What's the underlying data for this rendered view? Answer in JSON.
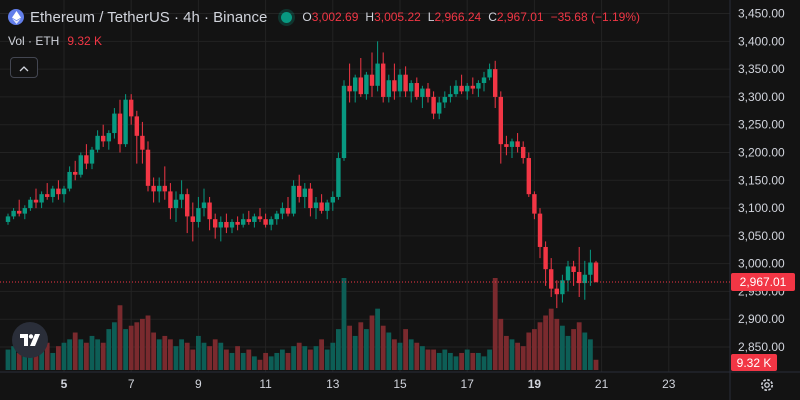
{
  "header": {
    "symbol": "Ethereum / TetherUS · 4h · Binance",
    "ohlc": [
      {
        "k": "O",
        "v": "3,002.69"
      },
      {
        "k": "H",
        "v": "3,005.22"
      },
      {
        "k": "L",
        "v": "2,966.24"
      },
      {
        "k": "C",
        "v": "2,967.01"
      }
    ],
    "change": "−35.68 (−1.19%)"
  },
  "volume": {
    "label": "Vol · ETH",
    "value": "9.32 K"
  },
  "price_labels": {
    "last": "2,967.01",
    "volume": "9.32 K"
  },
  "colors": {
    "up": "#089981",
    "down": "#f23645",
    "up_vol": "#0d5e56",
    "down_vol": "#7a2a2e",
    "background": "#131313",
    "grid": "#232323",
    "text": "#d1d4dc"
  },
  "icons": {
    "logo": "ethereum-logo-icon",
    "live": "live-dot-icon",
    "collapse": "chevron-up-icon",
    "brand": "tradingview-logo-icon",
    "settings": "gear-icon"
  },
  "chart_data": {
    "type": "candlestick",
    "y_ticks": [
      "3,450.00",
      "3,400.00",
      "3,350.00",
      "3,300.00",
      "3,250.00",
      "3,200.00",
      "3,150.00",
      "3,100.00",
      "3,050.00",
      "3,000.00",
      "2,950.00",
      "2,900.00",
      "2,850.00"
    ],
    "y_tick_values": [
      3450,
      3400,
      3350,
      3300,
      3250,
      3200,
      3150,
      3100,
      3050,
      3000,
      2950,
      2900,
      2850
    ],
    "x_ticks": [
      {
        "label": "5",
        "bold": true,
        "index": 10
      },
      {
        "label": "7",
        "bold": false,
        "index": 22
      },
      {
        "label": "9",
        "bold": false,
        "index": 34
      },
      {
        "label": "11",
        "bold": false,
        "index": 46
      },
      {
        "label": "13",
        "bold": false,
        "index": 58
      },
      {
        "label": "15",
        "bold": false,
        "index": 70
      },
      {
        "label": "17",
        "bold": false,
        "index": 82
      },
      {
        "label": "19",
        "bold": true,
        "index": 94
      },
      {
        "label": "21",
        "bold": false,
        "index": 106
      },
      {
        "label": "23",
        "bold": false,
        "index": 118
      }
    ],
    "ylim": [
      2850,
      3460
    ],
    "last_price": 2967.01,
    "volume_max": 27,
    "candles": [
      [
        3075,
        3090,
        3070,
        3085,
        6
      ],
      [
        3085,
        3100,
        3080,
        3095,
        7
      ],
      [
        3095,
        3115,
        3085,
        3090,
        5
      ],
      [
        3090,
        3105,
        3080,
        3100,
        6
      ],
      [
        3100,
        3120,
        3095,
        3115,
        5
      ],
      [
        3115,
        3135,
        3100,
        3110,
        7
      ],
      [
        3110,
        3130,
        3100,
        3125,
        6
      ],
      [
        3125,
        3145,
        3115,
        3120,
        8
      ],
      [
        3120,
        3140,
        3110,
        3135,
        5
      ],
      [
        3135,
        3150,
        3115,
        3125,
        7
      ],
      [
        3125,
        3140,
        3110,
        3135,
        8
      ],
      [
        3135,
        3175,
        3130,
        3165,
        9
      ],
      [
        3165,
        3185,
        3150,
        3160,
        11
      ],
      [
        3160,
        3200,
        3155,
        3195,
        9
      ],
      [
        3195,
        3215,
        3170,
        3180,
        8
      ],
      [
        3180,
        3210,
        3170,
        3205,
        10
      ],
      [
        3205,
        3240,
        3200,
        3230,
        9
      ],
      [
        3230,
        3250,
        3210,
        3220,
        8
      ],
      [
        3220,
        3240,
        3205,
        3235,
        12
      ],
      [
        3235,
        3280,
        3225,
        3270,
        14
      ],
      [
        3270,
        3295,
        3200,
        3215,
        19
      ],
      [
        3215,
        3305,
        3210,
        3295,
        12
      ],
      [
        3295,
        3305,
        3250,
        3265,
        13
      ],
      [
        3265,
        3275,
        3180,
        3230,
        14
      ],
      [
        3230,
        3255,
        3180,
        3205,
        15
      ],
      [
        3205,
        3220,
        3130,
        3140,
        16
      ],
      [
        3140,
        3155,
        3110,
        3130,
        11
      ],
      [
        3130,
        3155,
        3110,
        3140,
        9
      ],
      [
        3140,
        3175,
        3115,
        3130,
        10
      ],
      [
        3130,
        3145,
        3080,
        3100,
        9
      ],
      [
        3100,
        3130,
        3075,
        3115,
        7
      ],
      [
        3115,
        3150,
        3100,
        3125,
        9
      ],
      [
        3125,
        3135,
        3055,
        3085,
        8
      ],
      [
        3085,
        3110,
        3040,
        3075,
        6
      ],
      [
        3075,
        3120,
        3065,
        3100,
        10
      ],
      [
        3100,
        3135,
        3085,
        3110,
        8
      ],
      [
        3110,
        3120,
        3060,
        3080,
        7
      ],
      [
        3080,
        3090,
        3045,
        3065,
        9
      ],
      [
        3065,
        3085,
        3040,
        3075,
        8
      ],
      [
        3075,
        3090,
        3055,
        3065,
        6
      ],
      [
        3065,
        3080,
        3055,
        3075,
        5
      ],
      [
        3075,
        3085,
        3060,
        3070,
        7
      ],
      [
        3070,
        3090,
        3065,
        3080,
        5
      ],
      [
        3080,
        3095,
        3070,
        3075,
        6
      ],
      [
        3075,
        3090,
        3065,
        3085,
        4
      ],
      [
        3085,
        3100,
        3075,
        3080,
        3
      ],
      [
        3080,
        3090,
        3065,
        3070,
        5
      ],
      [
        3070,
        3085,
        3060,
        3080,
        4
      ],
      [
        3080,
        3095,
        3070,
        3090,
        5
      ],
      [
        3090,
        3110,
        3080,
        3100,
        6
      ],
      [
        3100,
        3120,
        3085,
        3090,
        5
      ],
      [
        3090,
        3150,
        3085,
        3140,
        7
      ],
      [
        3140,
        3160,
        3110,
        3120,
        8
      ],
      [
        3120,
        3145,
        3100,
        3135,
        7
      ],
      [
        3135,
        3145,
        3085,
        3100,
        6
      ],
      [
        3100,
        3120,
        3080,
        3110,
        7
      ],
      [
        3110,
        3125,
        3090,
        3095,
        9
      ],
      [
        3095,
        3115,
        3080,
        3110,
        6
      ],
      [
        3110,
        3130,
        3095,
        3120,
        8
      ],
      [
        3120,
        3200,
        3115,
        3190,
        12
      ],
      [
        3190,
        3330,
        3185,
        3320,
        27
      ],
      [
        3320,
        3360,
        3290,
        3310,
        13
      ],
      [
        3310,
        3340,
        3290,
        3335,
        10
      ],
      [
        3335,
        3370,
        3300,
        3305,
        14
      ],
      [
        3305,
        3345,
        3295,
        3340,
        12
      ],
      [
        3340,
        3380,
        3300,
        3320,
        16
      ],
      [
        3320,
        3400,
        3310,
        3360,
        18
      ],
      [
        3360,
        3380,
        3290,
        3300,
        13
      ],
      [
        3300,
        3340,
        3290,
        3330,
        11
      ],
      [
        3330,
        3360,
        3295,
        3310,
        9
      ],
      [
        3310,
        3350,
        3300,
        3340,
        8
      ],
      [
        3340,
        3355,
        3300,
        3310,
        12
      ],
      [
        3310,
        3330,
        3290,
        3325,
        9
      ],
      [
        3325,
        3335,
        3295,
        3300,
        8
      ],
      [
        3300,
        3320,
        3280,
        3315,
        7
      ],
      [
        3315,
        3325,
        3290,
        3300,
        6
      ],
      [
        3300,
        3310,
        3260,
        3270,
        6
      ],
      [
        3270,
        3300,
        3260,
        3290,
        5
      ],
      [
        3290,
        3310,
        3280,
        3300,
        6
      ],
      [
        3300,
        3320,
        3290,
        3305,
        5
      ],
      [
        3305,
        3330,
        3300,
        3320,
        4
      ],
      [
        3320,
        3340,
        3305,
        3310,
        5
      ],
      [
        3310,
        3325,
        3295,
        3320,
        6
      ],
      [
        3320,
        3335,
        3305,
        3315,
        5
      ],
      [
        3315,
        3330,
        3300,
        3325,
        5
      ],
      [
        3325,
        3345,
        3310,
        3335,
        4
      ],
      [
        3335,
        3360,
        3330,
        3350,
        6
      ],
      [
        3350,
        3365,
        3280,
        3300,
        27
      ],
      [
        3300,
        3310,
        3180,
        3215,
        15
      ],
      [
        3215,
        3230,
        3195,
        3210,
        10
      ],
      [
        3210,
        3225,
        3190,
        3220,
        9
      ],
      [
        3220,
        3235,
        3200,
        3210,
        8
      ],
      [
        3210,
        3220,
        3180,
        3190,
        7
      ],
      [
        3190,
        3200,
        3120,
        3125,
        11
      ],
      [
        3125,
        3130,
        3080,
        3090,
        12
      ],
      [
        3090,
        3100,
        3010,
        3030,
        14
      ],
      [
        3030,
        3040,
        2960,
        2990,
        16
      ],
      [
        2990,
        3010,
        2940,
        2955,
        18
      ],
      [
        2955,
        2970,
        2920,
        2945,
        15
      ],
      [
        2945,
        2980,
        2930,
        2970,
        13
      ],
      [
        2970,
        3005,
        2950,
        2995,
        10
      ],
      [
        2995,
        3005,
        2960,
        2985,
        12
      ],
      [
        2985,
        3030,
        2940,
        2965,
        14
      ],
      [
        2965,
        3005,
        2935,
        2980,
        11
      ],
      [
        2980,
        3025,
        2960,
        3002,
        9
      ],
      [
        3002,
        3005,
        2966,
        2967,
        3
      ]
    ]
  }
}
